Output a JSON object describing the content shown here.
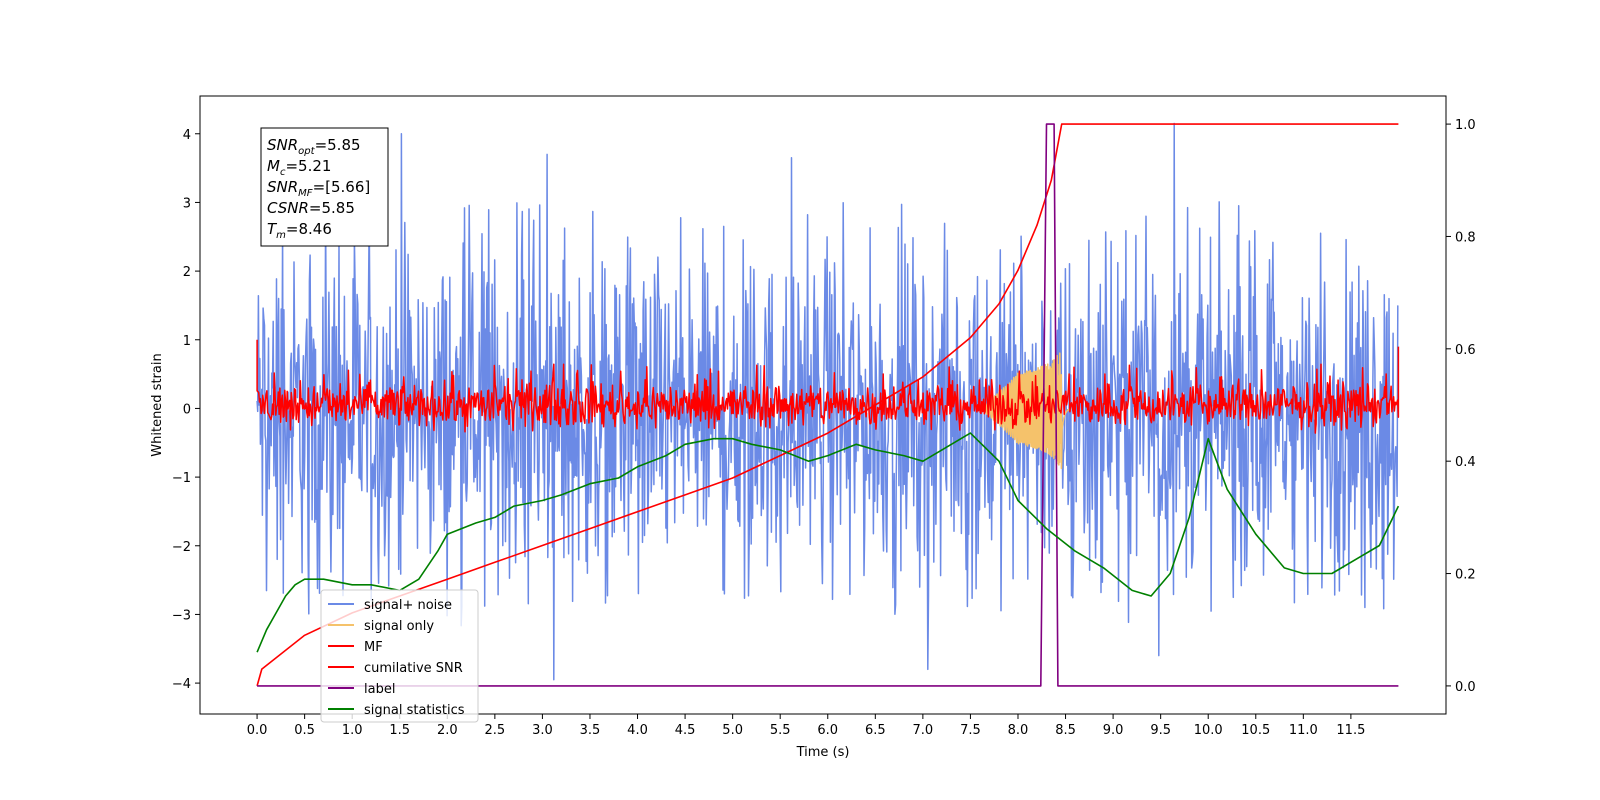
{
  "chart_data": {
    "type": "line",
    "title": "",
    "xlabel": "Time (s)",
    "ylabel": "Whitened strain",
    "xlim": [
      -0.6,
      12.5
    ],
    "ylim": [
      -4.45,
      4.55
    ],
    "y2lim": [
      -0.05,
      1.05
    ],
    "grid": false,
    "legend_position": "lower-left",
    "x_ticks": [
      "0.0",
      "0.5",
      "1.0",
      "1.5",
      "2.0",
      "2.5",
      "3.0",
      "3.5",
      "4.0",
      "4.5",
      "5.0",
      "5.5",
      "6.0",
      "6.5",
      "7.0",
      "7.5",
      "8.0",
      "8.5",
      "9.0",
      "9.5",
      "10.0",
      "10.5",
      "11.0",
      "11.5"
    ],
    "y_ticks": [
      "−4",
      "−3",
      "−2",
      "−1",
      "0",
      "1",
      "2",
      "3",
      "4"
    ],
    "y2_ticks": [
      "0.0",
      "0.2",
      "0.4",
      "0.6",
      "0.8",
      "1.0"
    ],
    "annotation": {
      "lines": [
        {
          "base": "SNR",
          "sub": "opt",
          "value": "=5.85"
        },
        {
          "base": "M",
          "sub": "c",
          "value": "=5.21"
        },
        {
          "base": "SNR",
          "sub": "MF",
          "value": "=[5.66]"
        },
        {
          "base": "CSNR",
          "sub": "",
          "value": "=5.85"
        },
        {
          "base": "T",
          "sub": "m",
          "value": "=8.46"
        }
      ]
    },
    "series": [
      {
        "name": "signal+ noise",
        "axis": "left",
        "color": "#6b8ae6",
        "kind": "noise",
        "band": [
          -2.6,
          2.4
        ],
        "spikes_hi": [
          4.0,
          3.7,
          3.65,
          4.15
        ],
        "spikes_lo": [
          -3.95,
          -3.8,
          -3.6
        ]
      },
      {
        "name": "signal only",
        "axis": "left",
        "color": "#f5c26b",
        "kind": "chirp",
        "t_merger": 8.46
      },
      {
        "name": "MF",
        "axis": "left",
        "color": "#ff0000",
        "kind": "noise",
        "band": [
          -0.3,
          0.4
        ]
      },
      {
        "name": "cumilative SNR",
        "axis": "right",
        "color": "#ff0000",
        "kind": "curve",
        "x": [
          0.0,
          0.05,
          0.5,
          1.0,
          1.5,
          2.0,
          2.5,
          3.0,
          3.5,
          4.0,
          4.5,
          5.0,
          5.5,
          6.0,
          6.5,
          7.0,
          7.5,
          7.8,
          8.0,
          8.2,
          8.35,
          8.46,
          9.0,
          10.0,
          11.0,
          12.0
        ],
        "y": [
          0.0,
          0.03,
          0.09,
          0.13,
          0.16,
          0.19,
          0.22,
          0.25,
          0.28,
          0.31,
          0.34,
          0.37,
          0.41,
          0.45,
          0.5,
          0.55,
          0.62,
          0.68,
          0.74,
          0.82,
          0.9,
          1.0,
          1.0,
          1.0,
          1.0,
          1.0
        ]
      },
      {
        "name": "label",
        "axis": "right",
        "color": "#800080",
        "kind": "step",
        "x": [
          0.0,
          8.24,
          8.3,
          8.38,
          8.42,
          12.0
        ],
        "y": [
          0.0,
          0.0,
          1.0,
          1.0,
          0.0,
          0.0
        ]
      },
      {
        "name": "signal statistics",
        "axis": "right",
        "color": "#008000",
        "kind": "curve",
        "x": [
          0.0,
          0.1,
          0.2,
          0.3,
          0.4,
          0.5,
          0.7,
          1.0,
          1.2,
          1.5,
          1.7,
          1.9,
          2.0,
          2.3,
          2.5,
          2.7,
          3.0,
          3.2,
          3.5,
          3.8,
          4.0,
          4.3,
          4.5,
          4.8,
          5.0,
          5.2,
          5.5,
          5.8,
          6.0,
          6.3,
          6.5,
          6.8,
          7.0,
          7.3,
          7.5,
          7.8,
          8.0,
          8.3,
          8.6,
          8.9,
          9.2,
          9.4,
          9.6,
          9.8,
          10.0,
          10.2,
          10.5,
          10.8,
          11.0,
          11.3,
          11.6,
          11.8,
          12.0
        ],
        "y": [
          0.06,
          0.1,
          0.13,
          0.16,
          0.18,
          0.19,
          0.19,
          0.18,
          0.18,
          0.17,
          0.19,
          0.24,
          0.27,
          0.29,
          0.3,
          0.32,
          0.33,
          0.34,
          0.36,
          0.37,
          0.39,
          0.41,
          0.43,
          0.44,
          0.44,
          0.43,
          0.42,
          0.4,
          0.41,
          0.43,
          0.42,
          0.41,
          0.4,
          0.43,
          0.45,
          0.4,
          0.33,
          0.28,
          0.24,
          0.21,
          0.17,
          0.16,
          0.2,
          0.3,
          0.44,
          0.35,
          0.27,
          0.21,
          0.2,
          0.2,
          0.23,
          0.25,
          0.32
        ]
      }
    ]
  }
}
